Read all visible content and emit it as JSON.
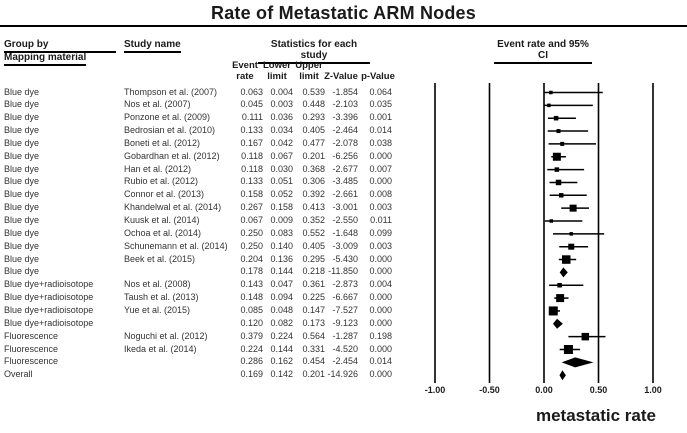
{
  "title": "Rate of Metastatic ARM Nodes",
  "header": {
    "group_by_line1": "Group by",
    "group_by_line2": "Mapping material",
    "study_name": "Study name",
    "statistics": "Statistics for each study",
    "ci_header": "Event rate and 95% CI",
    "sub_event": "Event\nrate",
    "sub_lower": "Lower\nlimit",
    "sub_upper": "Upper\nlimit",
    "sub_z": "Z-Value",
    "sub_p": "p-Value"
  },
  "colors": {
    "ink": "#000000",
    "row_text": "#333333"
  },
  "chart_data": {
    "type": "scatter",
    "subtype": "forest-plot",
    "title": "Rate of Metastatic ARM Nodes",
    "xlabel": "metastatic rate",
    "x_ticks": [
      -1.0,
      -0.5,
      0.0,
      0.5,
      1.0
    ],
    "x_tick_labels": [
      "-1.00",
      "-0.50",
      "0.00",
      "0.50",
      "1.00"
    ],
    "xlim": [
      -1.25,
      1.25
    ],
    "grid": "vertical-lines-only",
    "legend_position": "none",
    "columns": [
      "Group by Mapping material",
      "Study name",
      "Event rate",
      "Lower limit",
      "Upper limit",
      "Z-Value",
      "p-Value"
    ],
    "rows": [
      {
        "group": "Blue dye",
        "study": "Thompson et al. (2007)",
        "event_rate": "0.063",
        "lower": "0.004",
        "upper": "0.539",
        "z": "-1.854",
        "p": "0.064",
        "marker": "square",
        "size": 3.5
      },
      {
        "group": "Blue dye",
        "study": "Nos et al. (2007)",
        "event_rate": "0.045",
        "lower": "0.003",
        "upper": "0.448",
        "z": "-2.103",
        "p": "0.035",
        "marker": "square",
        "size": 3.5
      },
      {
        "group": "Blue dye",
        "study": "Ponzone et al. (2009)",
        "event_rate": "0.111",
        "lower": "0.036",
        "upper": "0.293",
        "z": "-3.396",
        "p": "0.001",
        "marker": "square",
        "size": 4.5
      },
      {
        "group": "Blue dye",
        "study": "Bedrosian et al. (2010)",
        "event_rate": "0.133",
        "lower": "0.034",
        "upper": "0.405",
        "z": "-2.464",
        "p": "0.014",
        "marker": "square",
        "size": 4
      },
      {
        "group": "Blue dye",
        "study": "Boneti et al. (2012)",
        "event_rate": "0.167",
        "lower": "0.042",
        "upper": "0.477",
        "z": "-2.078",
        "p": "0.038",
        "marker": "square",
        "size": 4
      },
      {
        "group": "Blue dye",
        "study": "Gobardhan et al. (2012)",
        "event_rate": "0.118",
        "lower": "0.067",
        "upper": "0.201",
        "z": "-6.256",
        "p": "0.000",
        "marker": "square",
        "size": 8
      },
      {
        "group": "Blue dye",
        "study": "Han et al. (2012)",
        "event_rate": "0.118",
        "lower": "0.030",
        "upper": "0.368",
        "z": "-2.677",
        "p": "0.007",
        "marker": "square",
        "size": 4.5
      },
      {
        "group": "Blue dye",
        "study": "Rubio et al. (2012)",
        "event_rate": "0.133",
        "lower": "0.051",
        "upper": "0.306",
        "z": "-3.485",
        "p": "0.000",
        "marker": "square",
        "size": 5.5
      },
      {
        "group": "Blue dye",
        "study": "Connor et al. (2013)",
        "event_rate": "0.158",
        "lower": "0.052",
        "upper": "0.392",
        "z": "-2.661",
        "p": "0.008",
        "marker": "square",
        "size": 4.5
      },
      {
        "group": "Blue dye",
        "study": "Khandelwal et al. (2014)",
        "event_rate": "0.267",
        "lower": "0.158",
        "upper": "0.413",
        "z": "-3.001",
        "p": "0.003",
        "marker": "square",
        "size": 7
      },
      {
        "group": "Blue dye",
        "study": "Kuusk et al. (2014)",
        "event_rate": "0.067",
        "lower": "0.009",
        "upper": "0.352",
        "z": "-2.550",
        "p": "0.011",
        "marker": "square",
        "size": 3.5
      },
      {
        "group": "Blue dye",
        "study": "Ochoa et al. (2014)",
        "event_rate": "0.250",
        "lower": "0.083",
        "upper": "0.552",
        "z": "-1.648",
        "p": "0.099",
        "marker": "square",
        "size": 3.5
      },
      {
        "group": "Blue dye",
        "study": "Schunemann et al. (2014)",
        "event_rate": "0.250",
        "lower": "0.140",
        "upper": "0.405",
        "z": "-3.009",
        "p": "0.003",
        "marker": "square",
        "size": 6
      },
      {
        "group": "Blue dye",
        "study": "Beek et al. (2015)",
        "event_rate": "0.204",
        "lower": "0.136",
        "upper": "0.295",
        "z": "-5.430",
        "p": "0.000",
        "marker": "square",
        "size": 8.5
      },
      {
        "group": "Blue dye",
        "study": "",
        "event_rate": "0.178",
        "lower": "0.144",
        "upper": "0.218",
        "z": "-11.850",
        "p": "0.000",
        "marker": "diamond"
      },
      {
        "group": "Blue dye+radioisotope",
        "study": "Nos et al. (2008)",
        "event_rate": "0.143",
        "lower": "0.047",
        "upper": "0.361",
        "z": "-2.873",
        "p": "0.004",
        "marker": "square",
        "size": 4.5
      },
      {
        "group": "Blue dye+radioisotope",
        "study": "Taush et al. (2013)",
        "event_rate": "0.148",
        "lower": "0.094",
        "upper": "0.225",
        "z": "-6.667",
        "p": "0.000",
        "marker": "square",
        "size": 8
      },
      {
        "group": "Blue dye+radioisotope",
        "study": "Yue et al. (2015)",
        "event_rate": "0.085",
        "lower": "0.048",
        "upper": "0.147",
        "z": "-7.527",
        "p": "0.000",
        "marker": "square",
        "size": 9
      },
      {
        "group": "Blue dye+radioisotope",
        "study": "",
        "event_rate": "0.120",
        "lower": "0.082",
        "upper": "0.173",
        "z": "-9.123",
        "p": "0.000",
        "marker": "diamond"
      },
      {
        "group": "Fluorescence",
        "study": "Noguchi et al. (2012)",
        "event_rate": "0.379",
        "lower": "0.224",
        "upper": "0.564",
        "z": "-1.287",
        "p": "0.198",
        "marker": "square",
        "size": 7.5
      },
      {
        "group": "Fluorescence",
        "study": "Ikeda et al. (2014)",
        "event_rate": "0.224",
        "lower": "0.144",
        "upper": "0.331",
        "z": "-4.520",
        "p": "0.000",
        "marker": "square",
        "size": 9
      },
      {
        "group": "Fluorescence",
        "study": "",
        "event_rate": "0.286",
        "lower": "0.162",
        "upper": "0.454",
        "z": "-2.454",
        "p": "0.014",
        "marker": "diamond"
      },
      {
        "group": "Overall",
        "study": "",
        "event_rate": "0.169",
        "lower": "0.142",
        "upper": "0.201",
        "z": "-14.926",
        "p": "0.000",
        "marker": "diamond"
      }
    ]
  }
}
